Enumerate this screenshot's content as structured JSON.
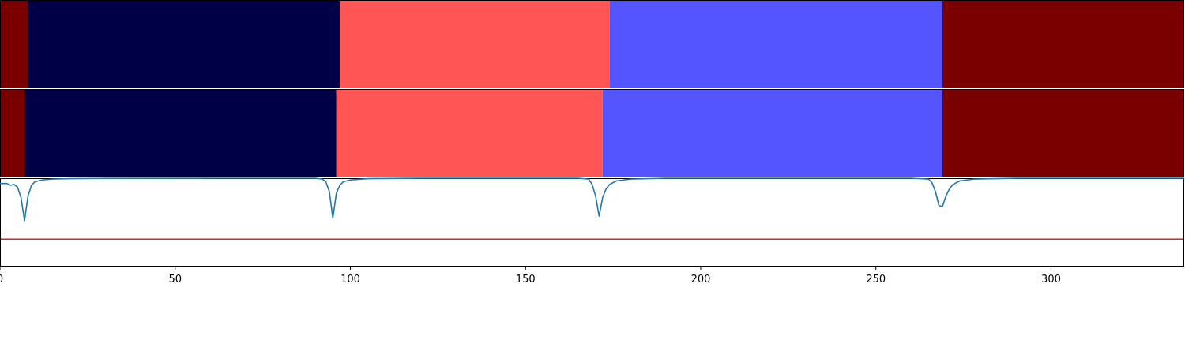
{
  "chart_data": {
    "type": "segmentation_with_line",
    "xlim": [
      0,
      338
    ],
    "x_ticks": [
      0,
      50,
      100,
      150,
      200,
      250,
      300
    ],
    "x_tick_labels": [
      "0",
      "50",
      "100",
      "150",
      "200",
      "250",
      "300"
    ],
    "segment_colors": {
      "dark_red": "#7a0000",
      "navy": "#000046",
      "salmon": "#ff5555",
      "periwinkle": "#5555ff"
    },
    "rows": [
      {
        "segments": [
          {
            "start": 0,
            "end": 8,
            "color": "dark_red"
          },
          {
            "start": 8,
            "end": 97,
            "color": "navy"
          },
          {
            "start": 97,
            "end": 174,
            "color": "salmon"
          },
          {
            "start": 174,
            "end": 269,
            "color": "periwinkle"
          },
          {
            "start": 269,
            "end": 338,
            "color": "dark_red"
          }
        ]
      },
      {
        "segments": [
          {
            "start": 0,
            "end": 7,
            "color": "dark_red"
          },
          {
            "start": 7,
            "end": 96,
            "color": "navy"
          },
          {
            "start": 96,
            "end": 172,
            "color": "salmon"
          },
          {
            "start": 172,
            "end": 269,
            "color": "periwinkle"
          },
          {
            "start": 269,
            "end": 338,
            "color": "dark_red"
          }
        ]
      }
    ],
    "line_panel": {
      "ylim": [
        0,
        1
      ],
      "threshold": 0.31,
      "threshold_color": "#d62728",
      "series": [
        {
          "color": "#1f77b4",
          "points": [
            [
              0,
              0.94
            ],
            [
              1,
              0.94
            ],
            [
              2,
              0.94
            ],
            [
              3,
              0.92
            ],
            [
              4,
              0.93
            ],
            [
              5,
              0.9
            ],
            [
              6,
              0.78
            ],
            [
              7,
              0.52
            ],
            [
              8,
              0.8
            ],
            [
              9,
              0.92
            ],
            [
              10,
              0.96
            ],
            [
              12,
              0.98
            ],
            [
              15,
              0.99
            ],
            [
              20,
              0.995
            ],
            [
              30,
              0.998
            ],
            [
              60,
              1.0
            ],
            [
              90,
              1.0
            ],
            [
              92,
              0.99
            ],
            [
              93,
              0.96
            ],
            [
              94,
              0.85
            ],
            [
              95,
              0.55
            ],
            [
              96,
              0.83
            ],
            [
              97,
              0.92
            ],
            [
              98,
              0.96
            ],
            [
              100,
              0.98
            ],
            [
              105,
              0.995
            ],
            [
              120,
              1.0
            ],
            [
              165,
              1.0
            ],
            [
              168,
              0.99
            ],
            [
              169,
              0.93
            ],
            [
              170,
              0.8
            ],
            [
              171,
              0.57
            ],
            [
              172,
              0.78
            ],
            [
              173,
              0.88
            ],
            [
              174,
              0.93
            ],
            [
              176,
              0.97
            ],
            [
              180,
              0.99
            ],
            [
              190,
              1.0
            ],
            [
              260,
              1.0
            ],
            [
              265,
              0.99
            ],
            [
              266,
              0.95
            ],
            [
              267,
              0.85
            ],
            [
              268,
              0.69
            ],
            [
              269,
              0.68
            ],
            [
              270,
              0.8
            ],
            [
              271,
              0.88
            ],
            [
              272,
              0.93
            ],
            [
              274,
              0.97
            ],
            [
              278,
              0.99
            ],
            [
              290,
              1.0
            ],
            [
              338,
              1.0
            ]
          ]
        }
      ]
    }
  }
}
